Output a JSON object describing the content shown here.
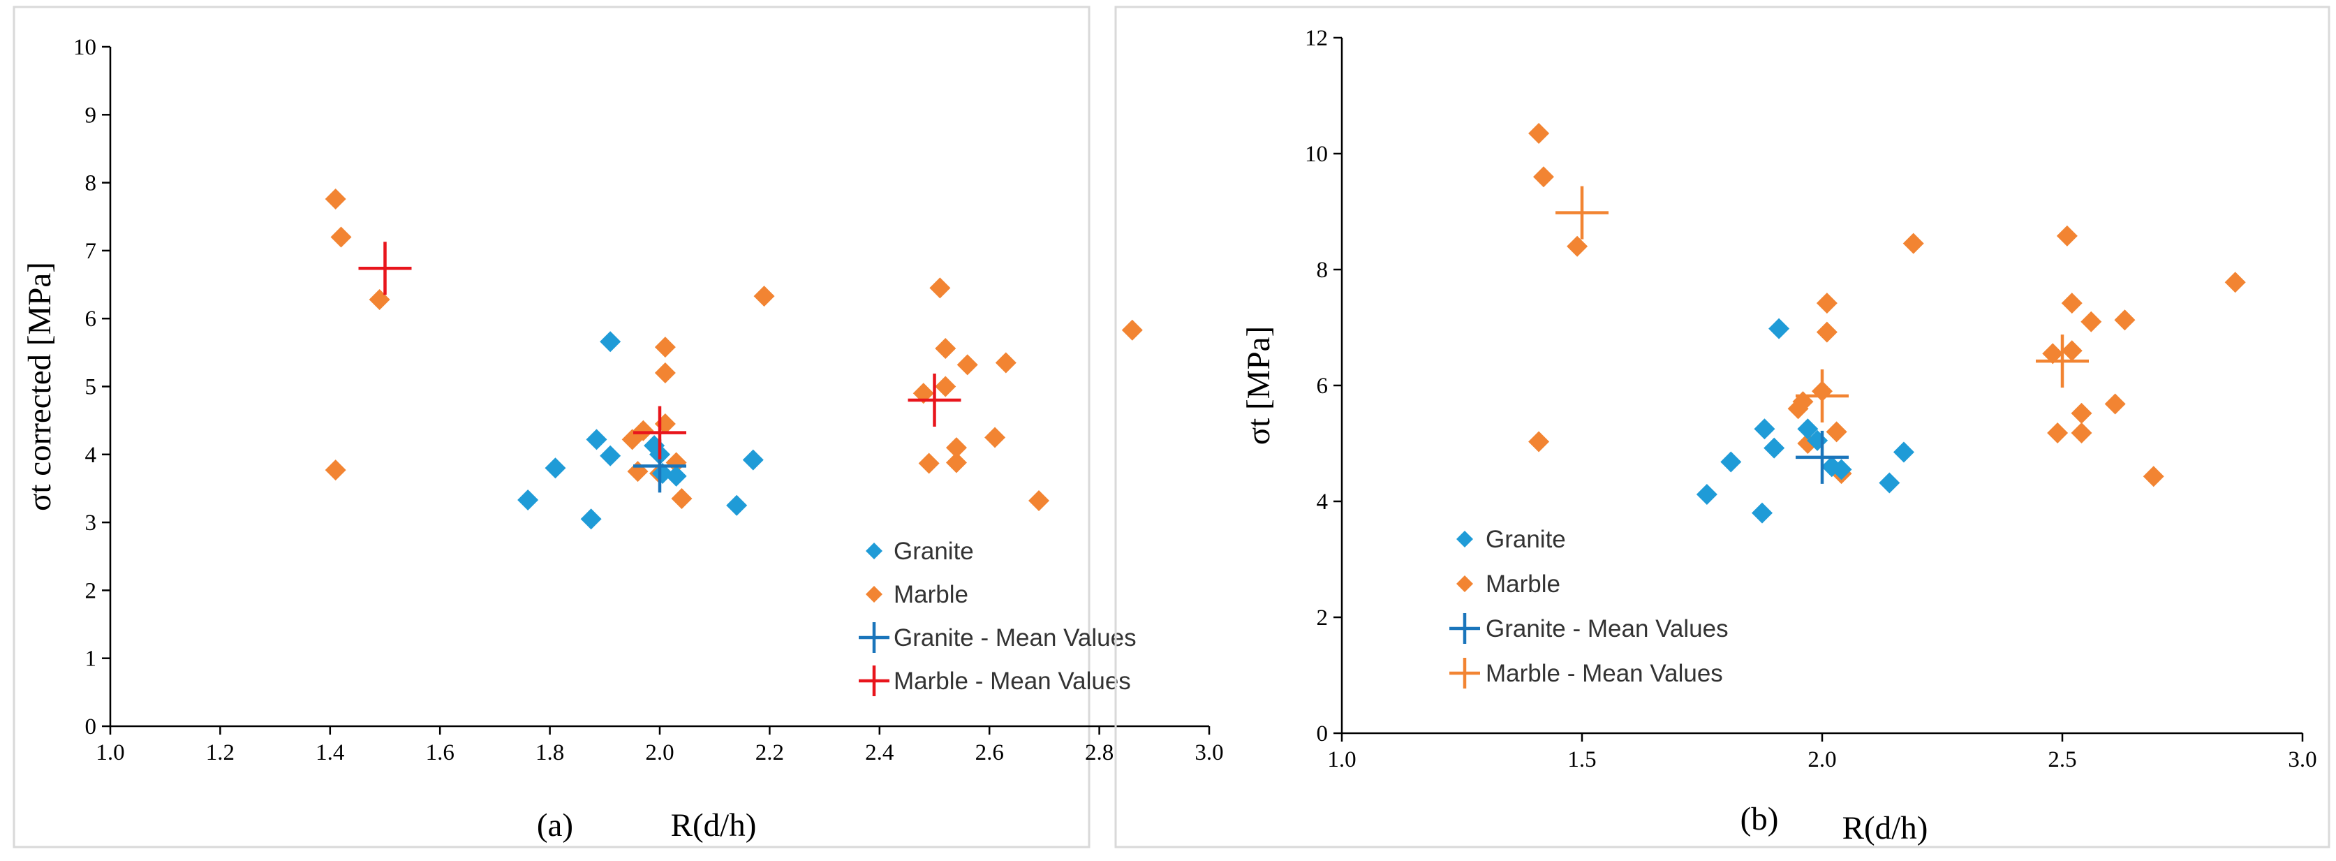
{
  "colors": {
    "granite": "#1f9bd7",
    "marble": "#f28432",
    "granite_mean": "#1a75bb",
    "marble_mean_a": "#e8151c",
    "marble_mean_b": "#f28432"
  },
  "chart_data": [
    {
      "type": "scatter",
      "panel_label": "(a)",
      "title": "",
      "xlabel": "R(d/h)",
      "ylabel": "σt corrected [MPa]",
      "xlim": [
        1.0,
        3.0
      ],
      "ylim": [
        0,
        10
      ],
      "x_ticks": [
        "1.0",
        "1.2",
        "1.4",
        "1.6",
        "1.8",
        "2.0",
        "2.2",
        "2.4",
        "2.6",
        "2.8",
        "3.0"
      ],
      "y_ticks": [
        "0",
        "1",
        "2",
        "3",
        "4",
        "5",
        "6",
        "7",
        "8",
        "9",
        "10"
      ],
      "legend_position": "bottom-right",
      "series": [
        {
          "name": "Granite",
          "marker": "diamond",
          "color_key": "granite",
          "points": [
            [
              1.76,
              3.33
            ],
            [
              1.81,
              3.8
            ],
            [
              1.875,
              3.05
            ],
            [
              1.885,
              4.22
            ],
            [
              1.91,
              3.98
            ],
            [
              1.91,
              5.66
            ],
            [
              1.99,
              4.13
            ],
            [
              2.0,
              4.0
            ],
            [
              2.005,
              3.72
            ],
            [
              2.03,
              3.68
            ],
            [
              2.14,
              3.25
            ],
            [
              2.17,
              3.92
            ]
          ]
        },
        {
          "name": "Marble",
          "marker": "diamond",
          "color_key": "marble",
          "points": [
            [
              1.41,
              7.76
            ],
            [
              1.42,
              7.2
            ],
            [
              1.49,
              6.28
            ],
            [
              1.41,
              3.77
            ],
            [
              1.95,
              4.22
            ],
            [
              1.96,
              3.75
            ],
            [
              1.97,
              4.35
            ],
            [
              2.0,
              3.72
            ],
            [
              2.01,
              4.45
            ],
            [
              2.01,
              5.58
            ],
            [
              2.01,
              5.2
            ],
            [
              2.03,
              3.88
            ],
            [
              2.04,
              3.35
            ],
            [
              2.19,
              6.33
            ],
            [
              2.48,
              4.9
            ],
            [
              2.49,
              3.87
            ],
            [
              2.51,
              6.45
            ],
            [
              2.52,
              5.56
            ],
            [
              2.52,
              5.0
            ],
            [
              2.54,
              4.1
            ],
            [
              2.54,
              3.88
            ],
            [
              2.56,
              5.32
            ],
            [
              2.61,
              4.25
            ],
            [
              2.63,
              5.35
            ],
            [
              2.69,
              3.32
            ],
            [
              2.86,
              5.83
            ]
          ]
        },
        {
          "name": "Granite - Mean Values",
          "marker": "plus",
          "color_key": "granite_mean",
          "points": [
            [
              2.0,
              3.83
            ]
          ]
        },
        {
          "name": "Marble - Mean Values",
          "marker": "plus",
          "color_key": "marble_mean_a",
          "points": [
            [
              1.5,
              6.74
            ],
            [
              2.0,
              4.32
            ],
            [
              2.5,
              4.8
            ]
          ]
        }
      ]
    },
    {
      "type": "scatter",
      "panel_label": "(b)",
      "title": "",
      "xlabel": "R(d/h)",
      "ylabel": "σt [MPa]",
      "xlim": [
        1.0,
        3.0
      ],
      "ylim": [
        0,
        12
      ],
      "x_ticks": [
        "1.0",
        "1.5",
        "2.0",
        "2.5",
        "3.0"
      ],
      "y_ticks": [
        "0",
        "2",
        "4",
        "6",
        "8",
        "10",
        "12"
      ],
      "legend_position": "bottom-left",
      "series": [
        {
          "name": "Granite",
          "marker": "diamond",
          "color_key": "granite",
          "points": [
            [
              1.76,
              4.12
            ],
            [
              1.81,
              4.68
            ],
            [
              1.875,
              3.8
            ],
            [
              1.88,
              5.25
            ],
            [
              1.9,
              4.92
            ],
            [
              1.91,
              6.98
            ],
            [
              1.97,
              5.25
            ],
            [
              1.99,
              5.05
            ],
            [
              2.02,
              4.6
            ],
            [
              2.04,
              4.55
            ],
            [
              2.14,
              4.32
            ],
            [
              2.17,
              4.85
            ]
          ]
        },
        {
          "name": "Marble",
          "marker": "diamond",
          "color_key": "marble",
          "points": [
            [
              1.41,
              10.35
            ],
            [
              1.42,
              9.6
            ],
            [
              1.49,
              8.4
            ],
            [
              1.41,
              5.03
            ],
            [
              1.95,
              5.6
            ],
            [
              1.96,
              5.72
            ],
            [
              1.97,
              5.0
            ],
            [
              2.0,
              5.9
            ],
            [
              2.01,
              7.42
            ],
            [
              2.01,
              6.92
            ],
            [
              2.03,
              5.2
            ],
            [
              2.04,
              4.48
            ],
            [
              2.19,
              8.45
            ],
            [
              2.48,
              6.55
            ],
            [
              2.49,
              5.18
            ],
            [
              2.51,
              8.58
            ],
            [
              2.52,
              7.42
            ],
            [
              2.52,
              6.6
            ],
            [
              2.54,
              5.52
            ],
            [
              2.54,
              5.18
            ],
            [
              2.56,
              7.1
            ],
            [
              2.61,
              5.68
            ],
            [
              2.63,
              7.13
            ],
            [
              2.69,
              4.43
            ],
            [
              2.86,
              7.78
            ]
          ]
        },
        {
          "name": "Granite - Mean Values",
          "marker": "plus",
          "color_key": "granite_mean",
          "points": [
            [
              2.0,
              4.76
            ]
          ]
        },
        {
          "name": "Marble - Mean Values",
          "marker": "plus",
          "color_key": "marble_mean_b",
          "points": [
            [
              1.5,
              8.98
            ],
            [
              2.0,
              5.82
            ],
            [
              2.5,
              6.42
            ]
          ]
        }
      ]
    }
  ]
}
